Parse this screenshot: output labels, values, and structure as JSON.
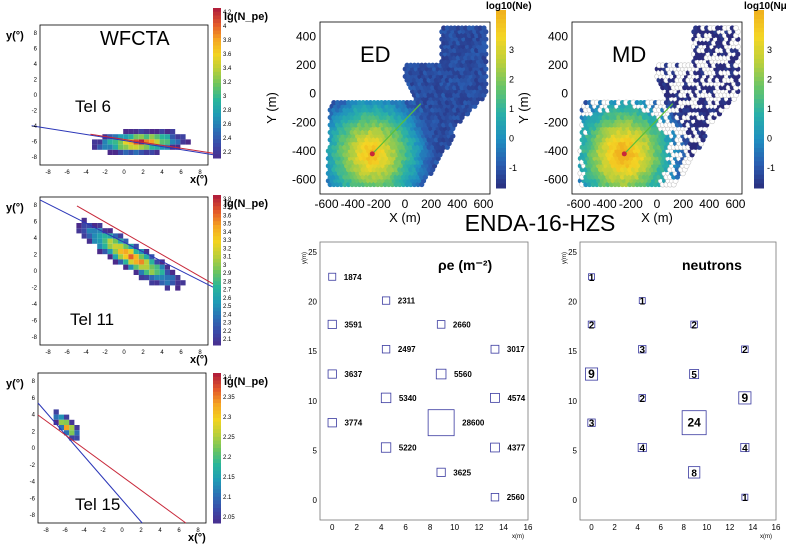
{
  "colors": {
    "wfcta_scale": [
      "#4b2a8a",
      "#3a4aa8",
      "#2b71b5",
      "#1f9bb5",
      "#29b59a",
      "#6cc45f",
      "#b8cf3a",
      "#f2d31f",
      "#f5a623",
      "#e35a2a",
      "#b3203a"
    ],
    "ground_scale": [
      "#2a2a7a",
      "#2a5cb0",
      "#1f8fc0",
      "#29b0a8",
      "#65c46a",
      "#b9cf3c",
      "#f4d625",
      "#f0b21e"
    ],
    "line_blue": "#2b36b8",
    "line_red": "#c8283a",
    "line_green": "#5bbf3a",
    "ground_detector_grey": "#c8c8c8",
    "box_blue": "#3a3aa0"
  },
  "wfcta": {
    "panels": [
      {
        "title": "WFCTA",
        "tel": "Tel 6",
        "xlabel": "x(°)",
        "ylabel": "y(°)",
        "zlabel": "lg(N_pe)",
        "scale_ticks": [
          "4.2",
          "4",
          "3.8",
          "3.6",
          "3.4",
          "3.2",
          "3",
          "2.8",
          "2.6",
          "2.4",
          "2.2"
        ],
        "x_ticks": [
          "-8",
          "-6",
          "-4",
          "-2",
          "0",
          "2",
          "4",
          "6",
          "8"
        ],
        "y_ticks": [
          "8",
          "6",
          "4",
          "2",
          "0",
          "-2",
          "-4",
          "-6",
          "-8"
        ]
      },
      {
        "title": "",
        "tel": "Tel 11",
        "xlabel": "x(°)",
        "ylabel": "y(°)",
        "zlabel": "lg(N_pe)",
        "scale_ticks": [
          "3.8",
          "3.7",
          "3.6",
          "3.5",
          "3.4",
          "3.3",
          "3.2",
          "3.1",
          "3",
          "2.9",
          "2.8",
          "2.7",
          "2.6",
          "2.5",
          "2.4",
          "2.3",
          "2.2",
          "2.1"
        ],
        "x_ticks": [
          "-8",
          "-6",
          "-4",
          "-2",
          "0",
          "2",
          "4",
          "6",
          "8"
        ],
        "y_ticks": [
          "8",
          "6",
          "4",
          "2",
          "0",
          "-2",
          "-4",
          "-6",
          "-8"
        ]
      },
      {
        "title": "",
        "tel": "Tel 15",
        "xlabel": "x(°)",
        "ylabel": "y(°)",
        "zlabel": "lg(N_pe)",
        "scale_ticks": [
          "2.4",
          "2.35",
          "2.3",
          "2.25",
          "2.2",
          "2.15",
          "2.1",
          "2.05"
        ],
        "x_ticks": [
          "-8",
          "-6",
          "-4",
          "-2",
          "0",
          "2",
          "4",
          "6",
          "8"
        ],
        "y_ticks": [
          "8",
          "6",
          "4",
          "2",
          "0",
          "-2",
          "-4",
          "-6",
          "-8"
        ]
      }
    ]
  },
  "ground": {
    "panels": [
      {
        "title": "ED",
        "zlabel": "log10(Ne)",
        "xlabel": "X (m)",
        "ylabel": "Y (m)",
        "x_ticks": [
          "-600",
          "-400",
          "-200",
          "0",
          "200",
          "400",
          "600"
        ],
        "y_ticks": [
          "400",
          "200",
          "0",
          "-200",
          "-400",
          "-600"
        ],
        "scale_ticks": [
          "3",
          "2",
          "1",
          "0",
          "-1"
        ]
      },
      {
        "title": "MD",
        "zlabel": "log10(Nμ)",
        "xlabel": "X (m)",
        "ylabel": "Y (m)",
        "x_ticks": [
          "-600",
          "-400",
          "-200",
          "0",
          "200",
          "400",
          "600"
        ],
        "y_ticks": [
          "400",
          "200",
          "0",
          "-200",
          "-400",
          "-600"
        ],
        "scale_ticks": [
          "3",
          "2",
          "1",
          "0",
          "-1"
        ]
      }
    ]
  },
  "enda": {
    "heading": "ENDA-16-HZS",
    "panels": [
      {
        "title": "ρe (m⁻²)",
        "xlabel": "x(m)",
        "ylabel": "y(m)",
        "x_ticks": [
          "0",
          "2",
          "4",
          "6",
          "8",
          "10",
          "12",
          "14",
          "16"
        ],
        "y_ticks": [
          "25",
          "20",
          "15",
          "10",
          "5",
          "0"
        ]
      },
      {
        "title": "neutrons",
        "xlabel": "x(m)",
        "ylabel": "y(m)",
        "x_ticks": [
          "0",
          "2",
          "4",
          "6",
          "8",
          "10",
          "12",
          "14",
          "16"
        ],
        "y_ticks": [
          "25",
          "20",
          "15",
          "10",
          "5",
          "0"
        ]
      }
    ]
  },
  "chart_data": [
    {
      "type": "heatmap",
      "title": "WFCTA",
      "subtitle": "Tel 6",
      "xlabel": "x(°)",
      "ylabel": "y(°)",
      "zlabel": "lg(N_pe)",
      "xlim": [
        -8,
        8
      ],
      "ylim": [
        -8,
        8
      ],
      "zlim": [
        2.2,
        4.2
      ],
      "image_centroid": [
        1.5,
        -6.5
      ]
    },
    {
      "type": "heatmap",
      "subtitle": "Tel 11",
      "xlabel": "x(°)",
      "ylabel": "y(°)",
      "zlabel": "lg(N_pe)",
      "xlim": [
        -8,
        8
      ],
      "ylim": [
        -8,
        8
      ],
      "zlim": [
        2.1,
        3.8
      ],
      "image_centroid": [
        -2.5,
        5.5
      ]
    },
    {
      "type": "heatmap",
      "subtitle": "Tel 15",
      "xlabel": "x(°)",
      "ylabel": "y(°)",
      "zlabel": "lg(N_pe)",
      "xlim": [
        -8,
        8
      ],
      "ylim": [
        -8,
        8
      ],
      "zlim": [
        2.05,
        2.4
      ],
      "image_centroid": [
        -7.5,
        2.5
      ]
    },
    {
      "type": "scatter",
      "title": "ED",
      "xlabel": "X (m)",
      "ylabel": "Y (m)",
      "zlabel": "log10(Ne)",
      "xlim": [
        -650,
        650
      ],
      "ylim": [
        -700,
        500
      ],
      "zlim": [
        -1.5,
        3.5
      ],
      "core": [
        -250,
        -420
      ]
    },
    {
      "type": "scatter",
      "title": "MD",
      "xlabel": "X (m)",
      "ylabel": "Y (m)",
      "zlabel": "log10(Nμ)",
      "xlim": [
        -650,
        650
      ],
      "ylim": [
        -700,
        500
      ],
      "zlim": [
        -1.5,
        3.5
      ],
      "core": [
        -250,
        -420
      ]
    },
    {
      "type": "scatter",
      "title": "ρe (m⁻²)",
      "xlabel": "x(m)",
      "ylabel": "y(m)",
      "xlim": [
        -1,
        16
      ],
      "ylim": [
        -2,
        26
      ],
      "points": [
        {
          "x": 0,
          "y": 22.5,
          "value": "1874"
        },
        {
          "x": 4.4,
          "y": 20.1,
          "value": "2311"
        },
        {
          "x": 0,
          "y": 17.7,
          "value": "3591"
        },
        {
          "x": 8.9,
          "y": 17.7,
          "value": "2660"
        },
        {
          "x": 4.4,
          "y": 15.2,
          "value": "2497"
        },
        {
          "x": 13.3,
          "y": 15.2,
          "value": "3017"
        },
        {
          "x": 0,
          "y": 12.7,
          "value": "3637"
        },
        {
          "x": 8.9,
          "y": 12.7,
          "value": "5560"
        },
        {
          "x": 4.4,
          "y": 10.3,
          "value": "5340"
        },
        {
          "x": 13.3,
          "y": 10.3,
          "value": "4574"
        },
        {
          "x": 0,
          "y": 7.8,
          "value": "3774"
        },
        {
          "x": 8.9,
          "y": 7.8,
          "value": "28600"
        },
        {
          "x": 4.4,
          "y": 5.3,
          "value": "5220"
        },
        {
          "x": 13.3,
          "y": 5.3,
          "value": "4377"
        },
        {
          "x": 8.9,
          "y": 2.8,
          "value": "3625"
        },
        {
          "x": 13.3,
          "y": 0.3,
          "value": "2560"
        }
      ]
    },
    {
      "type": "scatter",
      "title": "neutrons",
      "xlabel": "x(m)",
      "ylabel": "y(m)",
      "xlim": [
        -1,
        16
      ],
      "ylim": [
        -2,
        26
      ],
      "points": [
        {
          "x": 0,
          "y": 22.5,
          "value": "1"
        },
        {
          "x": 4.4,
          "y": 20.1,
          "value": "1"
        },
        {
          "x": 0,
          "y": 17.7,
          "value": "2"
        },
        {
          "x": 8.9,
          "y": 17.7,
          "value": "2"
        },
        {
          "x": 4.4,
          "y": 15.2,
          "value": "3"
        },
        {
          "x": 13.3,
          "y": 15.2,
          "value": "2"
        },
        {
          "x": 0,
          "y": 12.7,
          "value": "9"
        },
        {
          "x": 8.9,
          "y": 12.7,
          "value": "5"
        },
        {
          "x": 4.4,
          "y": 10.3,
          "value": "2"
        },
        {
          "x": 13.3,
          "y": 10.3,
          "value": "9"
        },
        {
          "x": 0,
          "y": 7.8,
          "value": "3"
        },
        {
          "x": 8.9,
          "y": 7.8,
          "value": "24"
        },
        {
          "x": 4.4,
          "y": 5.3,
          "value": "4"
        },
        {
          "x": 13.3,
          "y": 5.3,
          "value": "4"
        },
        {
          "x": 8.9,
          "y": 2.8,
          "value": "8"
        },
        {
          "x": 13.3,
          "y": 0.3,
          "value": "1"
        }
      ]
    }
  ]
}
